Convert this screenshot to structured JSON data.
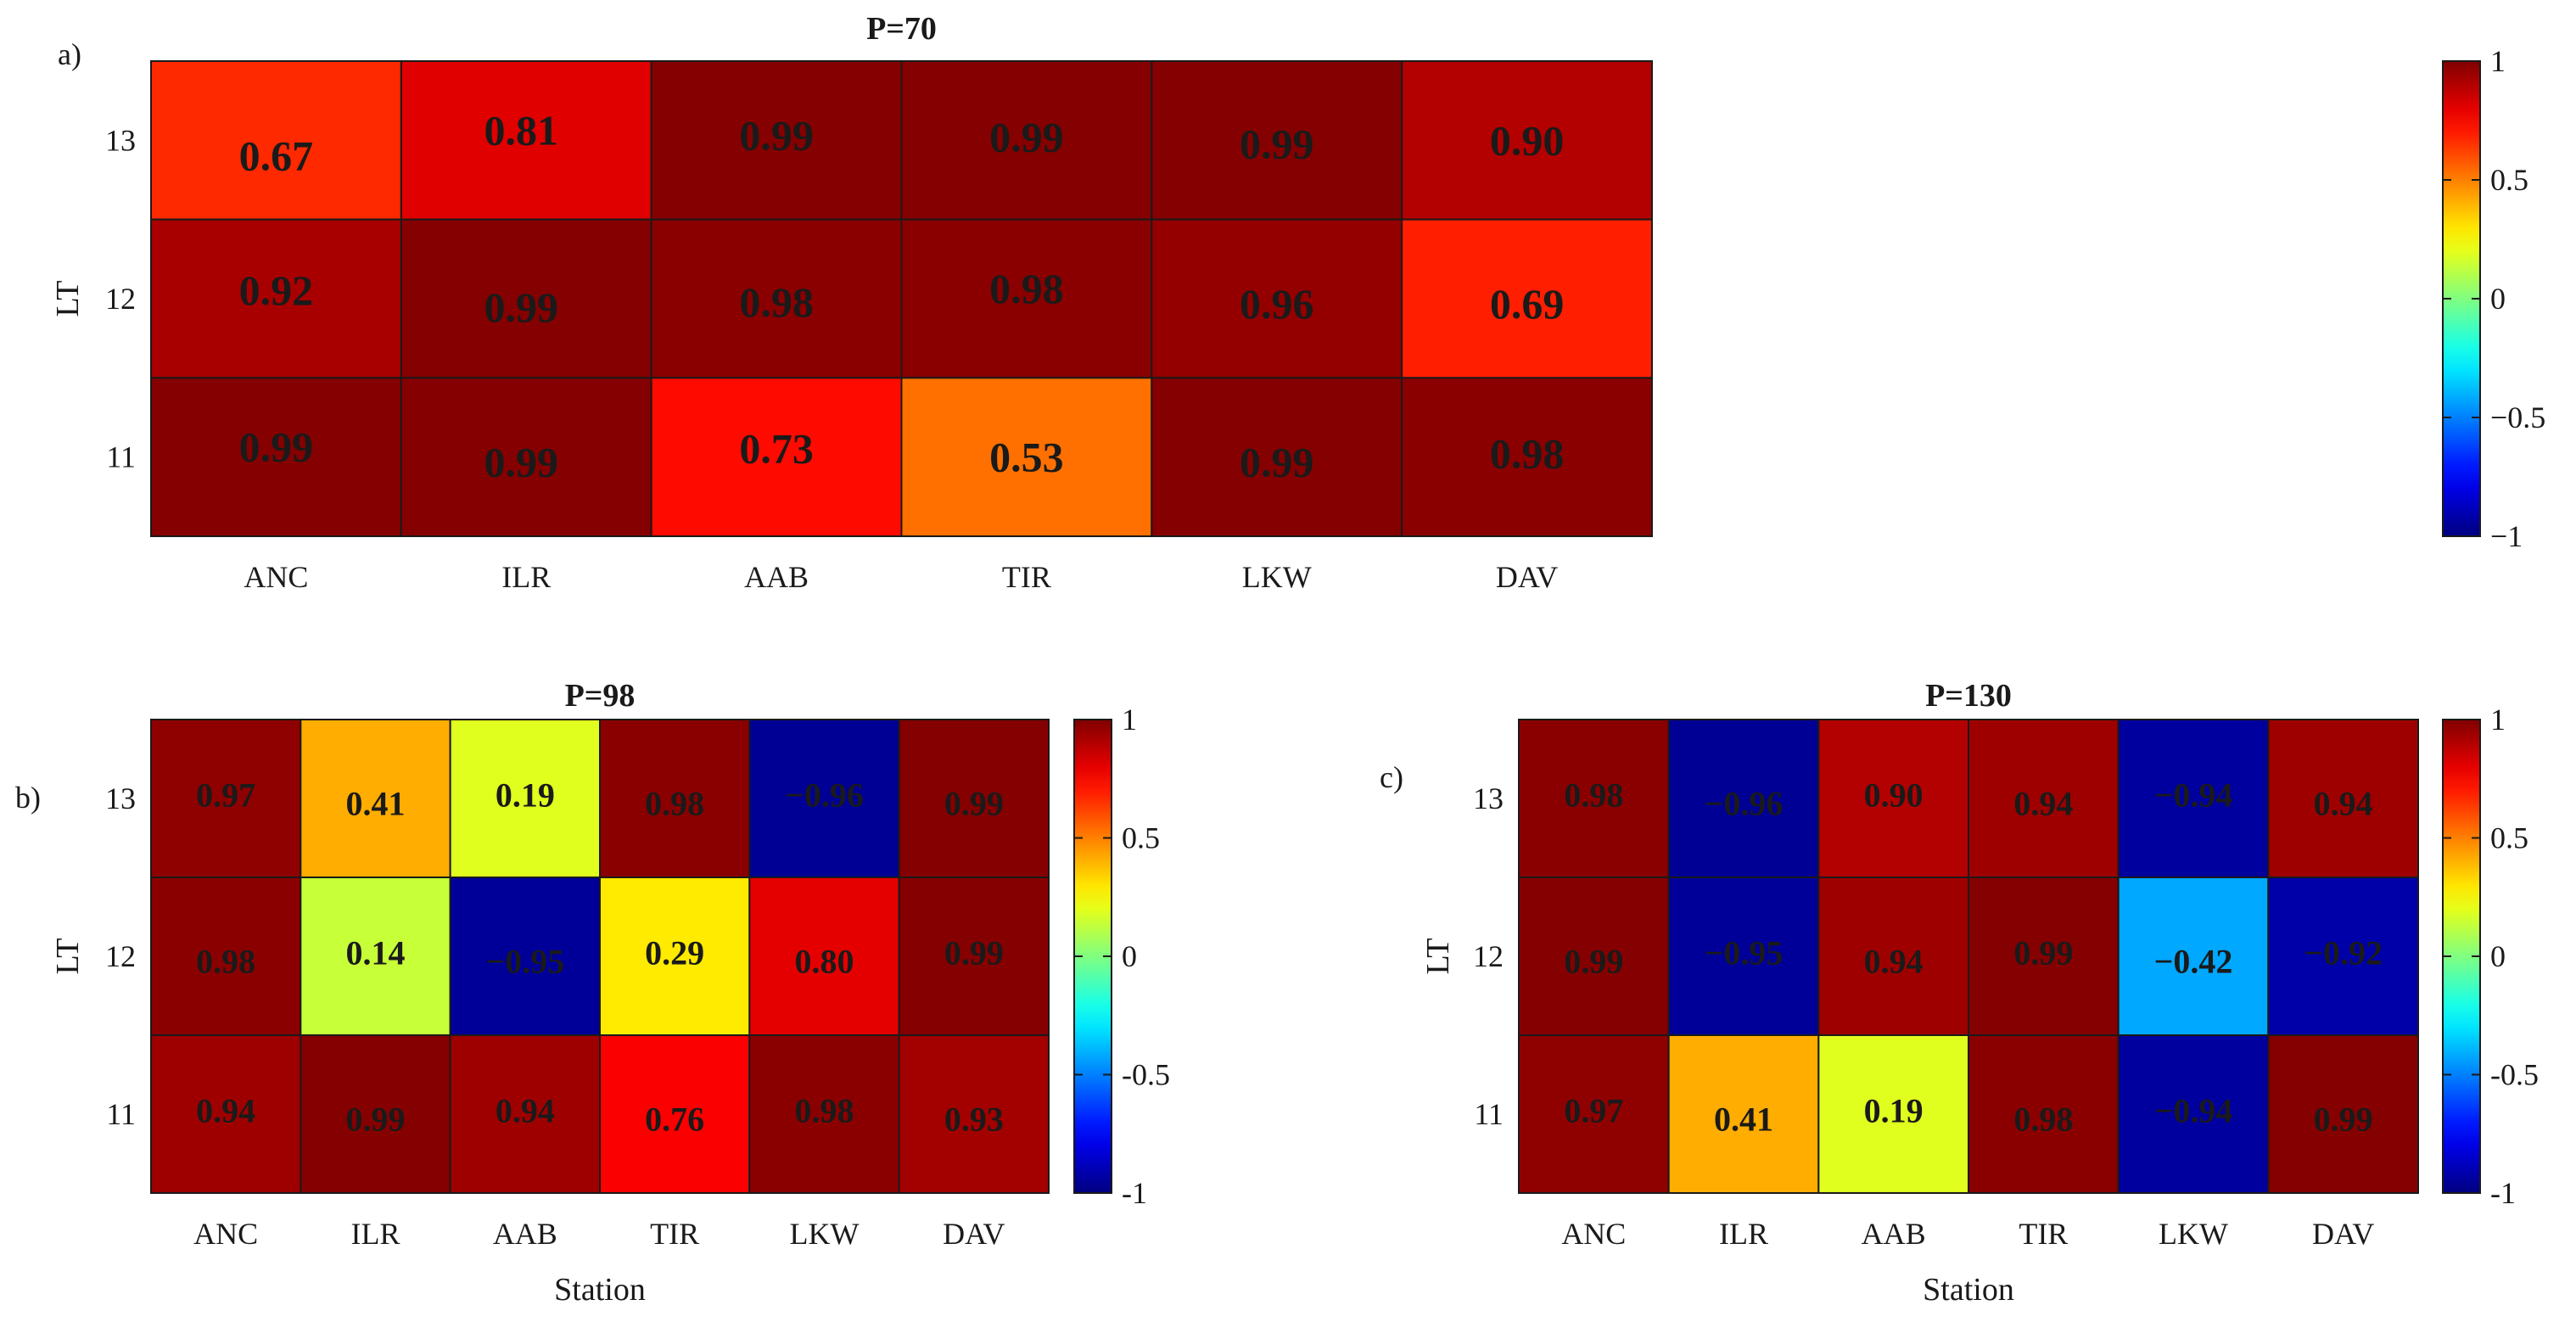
{
  "chart_data": [
    {
      "type": "heatmap",
      "panel_label": "a)",
      "title": "P=70",
      "xlabel": "",
      "ylabel": "LT",
      "categories": [
        "ANC",
        "ILR",
        "AAB",
        "TIR",
        "LKW",
        "DAV"
      ],
      "rows": [
        "13",
        "12",
        "11"
      ],
      "values": [
        [
          0.67,
          0.81,
          0.99,
          0.99,
          0.99,
          0.9
        ],
        [
          0.92,
          0.99,
          0.98,
          0.98,
          0.96,
          0.69
        ],
        [
          0.99,
          0.99,
          0.73,
          0.53,
          0.99,
          0.98
        ]
      ],
      "labels": [
        [
          "0.67",
          "0.81",
          "0.99",
          "0.99",
          "0.99",
          "0.90"
        ],
        [
          "0.92",
          "0.99",
          "0.98",
          "0.98",
          "0.96",
          "0.69"
        ],
        [
          "0.99",
          "0.99",
          "0.73",
          "0.53",
          "0.99",
          "0.98"
        ]
      ],
      "clim": [
        -1,
        1
      ],
      "colorbar_ticks": [
        "1",
        "0.5",
        "0",
        "−0.5",
        "−1"
      ],
      "colormap": "jet"
    },
    {
      "type": "heatmap",
      "panel_label": "b)",
      "title": "P=98",
      "xlabel": "Station",
      "ylabel": "LT",
      "categories": [
        "ANC",
        "ILR",
        "AAB",
        "TIR",
        "LKW",
        "DAV"
      ],
      "rows": [
        "13",
        "12",
        "11"
      ],
      "values": [
        [
          0.97,
          0.41,
          0.19,
          0.98,
          -0.96,
          0.99
        ],
        [
          0.98,
          0.14,
          -0.95,
          0.29,
          0.8,
          0.99
        ],
        [
          0.94,
          0.99,
          0.94,
          0.76,
          0.98,
          0.93
        ]
      ],
      "labels": [
        [
          "0.97",
          "0.41",
          "0.19",
          "0.98",
          "−0.96",
          "0.99"
        ],
        [
          "0.98",
          "0.14",
          "−0.95",
          "0.29",
          "0.80",
          "0.99"
        ],
        [
          "0.94",
          "0.99",
          "0.94",
          "0.76",
          "0.98",
          "0.93"
        ]
      ],
      "clim": [
        -1,
        1
      ],
      "colorbar_ticks": [
        "1",
        "0.5",
        "0",
        "-0.5",
        "-1"
      ],
      "colormap": "jet"
    },
    {
      "type": "heatmap",
      "panel_label": "c)",
      "title": "P=130",
      "xlabel": "Station",
      "ylabel": "LT",
      "categories": [
        "ANC",
        "ILR",
        "AAB",
        "TIR",
        "LKW",
        "DAV"
      ],
      "rows": [
        "13",
        "12",
        "11"
      ],
      "values": [
        [
          0.98,
          -0.96,
          0.9,
          0.94,
          -0.94,
          0.94
        ],
        [
          0.99,
          -0.95,
          0.94,
          0.99,
          -0.42,
          -0.92
        ],
        [
          0.97,
          0.41,
          0.19,
          0.98,
          -0.94,
          0.99
        ]
      ],
      "labels": [
        [
          "0.98",
          "−0.96",
          "0.90",
          "0.94",
          "−0.94",
          "0.94"
        ],
        [
          "0.99",
          "−0.95",
          "0.94",
          "0.99",
          "−0.42",
          "−0.92"
        ],
        [
          "0.97",
          "0.41",
          "0.19",
          "0.98",
          "−0.94",
          "0.99"
        ]
      ],
      "clim": [
        -1,
        1
      ],
      "colorbar_ticks": [
        "1",
        "0.5",
        "0",
        "-0.5",
        "-1"
      ],
      "colormap": "jet"
    }
  ]
}
